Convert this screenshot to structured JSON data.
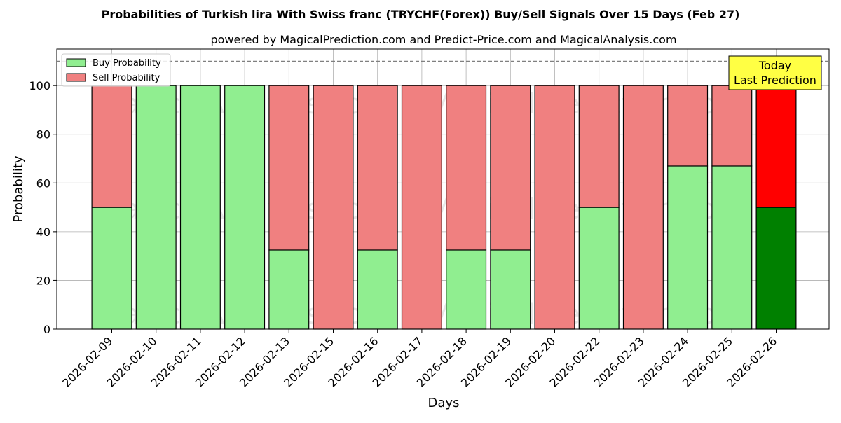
{
  "chart_data": {
    "type": "bar",
    "stacked": true,
    "title": "Probabilities of Turkish lira With Swiss franc (TRYCHF(Forex)) Buy/Sell Signals Over 15 Days (Feb 27)",
    "subtitle": "powered by MagicalPrediction.com and Predict-Price.com and MagicalAnalysis.com",
    "xlabel": "Days",
    "ylabel": "Probability",
    "ylim": [
      0,
      115
    ],
    "yticks": [
      0,
      20,
      40,
      60,
      80,
      100
    ],
    "grid": true,
    "legend_position": "top-left",
    "reference_line": 110,
    "categories": [
      "2026-02-09",
      "2026-02-10",
      "2026-02-11",
      "2026-02-12",
      "2026-02-13",
      "2026-02-15",
      "2026-02-16",
      "2026-02-17",
      "2026-02-18",
      "2026-02-19",
      "2026-02-20",
      "2026-02-22",
      "2026-02-23",
      "2026-02-24",
      "2026-02-25",
      "2026-02-26"
    ],
    "series": [
      {
        "name": "Buy Probability",
        "values": [
          50,
          100,
          100,
          100,
          32.5,
          0,
          32.5,
          0,
          32.5,
          32.5,
          0,
          50,
          0,
          67,
          67,
          50
        ],
        "color": "#90ee90",
        "highlight_color": "#008000"
      },
      {
        "name": "Sell Probability",
        "values": [
          50,
          0,
          0,
          0,
          67.5,
          100,
          67.5,
          100,
          67.5,
          67.5,
          100,
          50,
          100,
          33,
          33,
          50
        ],
        "color": "#f08080",
        "highlight_color": "#ff0000"
      }
    ],
    "highlight_index": 15,
    "annotation": {
      "lines": [
        "Today",
        "Last Prediction"
      ],
      "color": "#ffff44"
    },
    "watermarks": [
      "MagicalAnalysis.com",
      "MagicalPrediction.com"
    ]
  }
}
